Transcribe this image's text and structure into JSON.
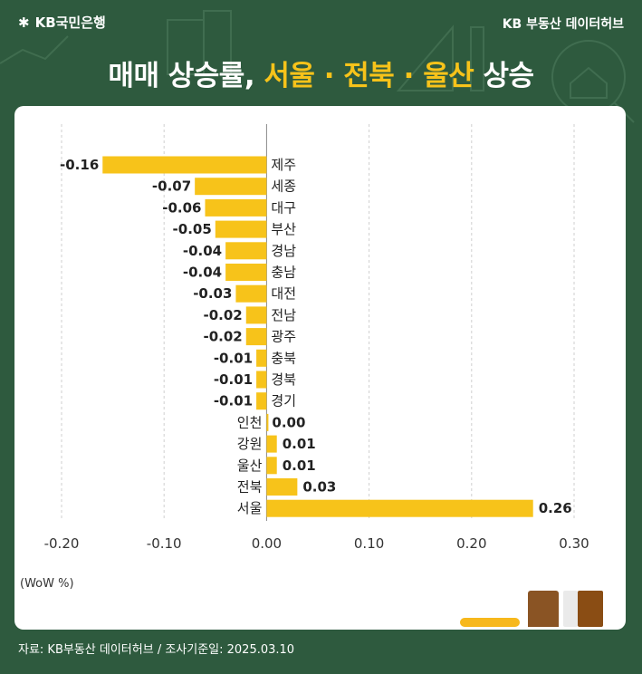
{
  "brand": {
    "name": "KB국민은행",
    "logo_icon": "kb-star-icon"
  },
  "source_top": "KB 부동산 데이터허브",
  "headline": {
    "prefix": "매매 상승률, ",
    "highlight": "서울 · 전북 · 울산",
    "suffix": " 상승"
  },
  "colors": {
    "background": "#2e5a3e",
    "bar": "#f7c31a",
    "highlight": "#f7c31a",
    "card": "#ffffff"
  },
  "chart_data": {
    "type": "bar",
    "orientation": "horizontal",
    "title": "매매 상승률, 서울 · 전북 · 울산 상승",
    "categories": [
      "제주",
      "세종",
      "대구",
      "부산",
      "경남",
      "충남",
      "대전",
      "전남",
      "광주",
      "충북",
      "경북",
      "경기",
      "인천",
      "강원",
      "울산",
      "전북",
      "서울"
    ],
    "values": [
      -0.16,
      -0.07,
      -0.06,
      -0.05,
      -0.04,
      -0.04,
      -0.03,
      -0.02,
      -0.02,
      -0.01,
      -0.01,
      -0.01,
      0.0,
      0.01,
      0.01,
      0.03,
      0.26
    ],
    "value_labels": [
      "-0.16",
      "-0.07",
      "-0.06",
      "-0.05",
      "-0.04",
      "-0.04",
      "-0.03",
      "-0.02",
      "-0.02",
      "-0.01",
      "-0.01",
      "-0.01",
      "0.00",
      "0.01",
      "0.01",
      "0.03",
      "0.26"
    ],
    "xlim": [
      -0.2,
      0.3
    ],
    "xticks": [
      "-0.20",
      "-0.10",
      "0.00",
      "0.10",
      "0.20",
      "0.30"
    ],
    "xtick_values": [
      -0.2,
      -0.1,
      0.0,
      0.1,
      0.2,
      0.3
    ],
    "xlabel": "(WoW %)",
    "grid": "vertical dashed"
  },
  "footnote": "자료: KB부동산 데이터허브 / 조사기준일: 2025.03.10"
}
